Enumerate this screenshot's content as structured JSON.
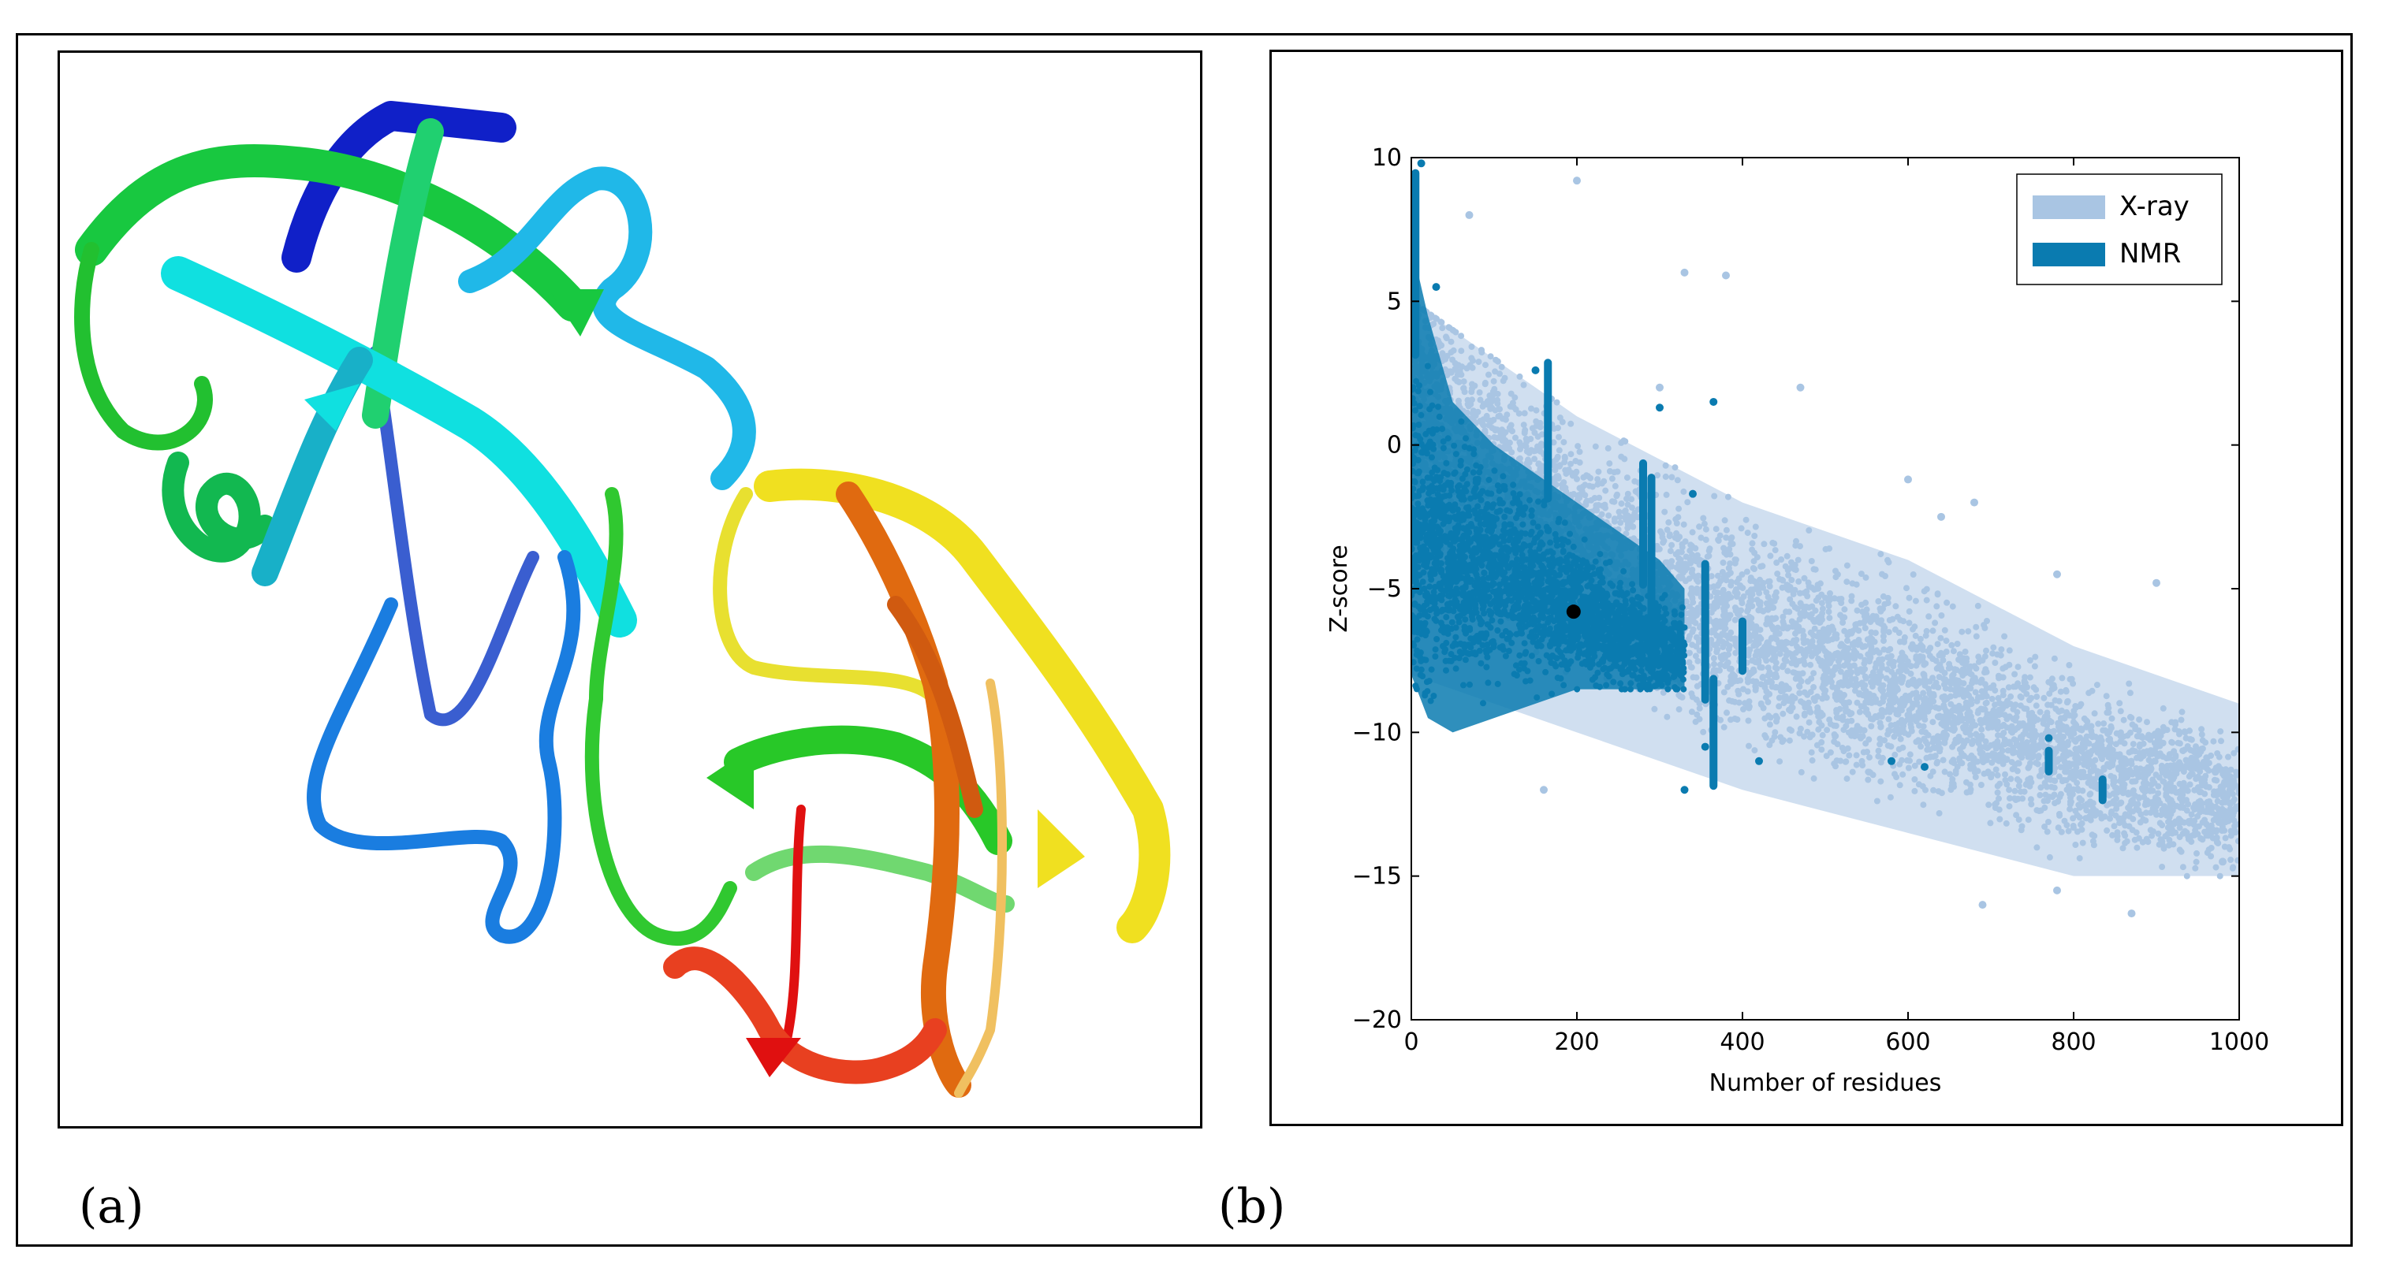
{
  "panels": {
    "a": {
      "label": "(a)"
    },
    "b": {
      "label": "(b)"
    }
  },
  "colors": {
    "xray": "#a9c5e3",
    "nmr": "#0a7bb0",
    "highlight": "#000000",
    "frame": "#000000"
  },
  "chart_data": {
    "type": "scatter",
    "title": "",
    "xlabel": "Number of residues",
    "ylabel": "Z-score",
    "xlim": [
      0,
      1000
    ],
    "ylim": [
      -20,
      10
    ],
    "xticks": [
      0,
      200,
      400,
      600,
      800,
      1000
    ],
    "yticks": [
      10,
      5,
      0,
      -5,
      -10,
      -15,
      -20
    ],
    "xtick_labels": [
      "0",
      "200",
      "400",
      "600",
      "800",
      "1000"
    ],
    "ytick_labels": [
      "10",
      "5",
      "0",
      "−5",
      "−10",
      "−15",
      "−20"
    ],
    "grid": false,
    "legend_position": "top-right",
    "series": [
      {
        "name": "X-ray",
        "color": "#a9c5e3",
        "trend": [
          [
            0,
            1.5
          ],
          [
            100,
            -1
          ],
          [
            200,
            -3.5
          ],
          [
            400,
            -6.5
          ],
          [
            600,
            -8.5
          ],
          [
            800,
            -11
          ],
          [
            1000,
            -12.5
          ]
        ],
        "band_upper": [
          [
            0,
            5
          ],
          [
            100,
            3
          ],
          [
            200,
            1
          ],
          [
            400,
            -2
          ],
          [
            600,
            -4
          ],
          [
            800,
            -7
          ],
          [
            1000,
            -9
          ]
        ],
        "band_lower": [
          [
            0,
            -8
          ],
          [
            100,
            -9
          ],
          [
            200,
            -10
          ],
          [
            400,
            -12
          ],
          [
            600,
            -13.5
          ],
          [
            800,
            -15
          ],
          [
            1000,
            -15
          ]
        ],
        "outliers": [
          [
            70,
            8
          ],
          [
            200,
            9.2
          ],
          [
            330,
            6
          ],
          [
            380,
            5.9
          ],
          [
            300,
            2
          ],
          [
            470,
            2
          ],
          [
            640,
            -2.5
          ],
          [
            680,
            -2
          ],
          [
            780,
            -4.5
          ],
          [
            900,
            -4.8
          ],
          [
            600,
            -1.2
          ],
          [
            780,
            -15.5
          ],
          [
            690,
            -16
          ],
          [
            870,
            -16.3
          ],
          [
            980,
            -14.5
          ],
          [
            160,
            -12
          ]
        ]
      },
      {
        "name": "NMR",
        "color": "#0a7bb0",
        "trend": [
          [
            0,
            -3
          ],
          [
            50,
            -4
          ],
          [
            100,
            -4.5
          ],
          [
            150,
            -5
          ],
          [
            200,
            -5.8
          ],
          [
            250,
            -6.5
          ],
          [
            300,
            -7
          ],
          [
            360,
            -7.5
          ]
        ],
        "band_upper": [
          [
            0,
            7
          ],
          [
            20,
            4.5
          ],
          [
            50,
            1.5
          ],
          [
            100,
            0
          ],
          [
            150,
            -1
          ],
          [
            200,
            -2
          ],
          [
            250,
            -3
          ],
          [
            300,
            -4
          ],
          [
            330,
            -5
          ]
        ],
        "band_lower": [
          [
            0,
            -8
          ],
          [
            20,
            -9.5
          ],
          [
            50,
            -10
          ],
          [
            100,
            -9.5
          ],
          [
            150,
            -9
          ],
          [
            200,
            -8.5
          ],
          [
            250,
            -8.5
          ],
          [
            300,
            -8.5
          ],
          [
            330,
            -8.5
          ]
        ],
        "column_streaks": [
          {
            "x": 5,
            "y_top": 9.6,
            "y_bottom": 3
          },
          {
            "x": 165,
            "y_top": 3,
            "y_bottom": -2
          },
          {
            "x": 280,
            "y_top": -0.5,
            "y_bottom": -5
          },
          {
            "x": 290,
            "y_top": -1,
            "y_bottom": -8
          },
          {
            "x": 355,
            "y_top": -4,
            "y_bottom": -9
          },
          {
            "x": 365,
            "y_top": -8,
            "y_bottom": -12
          },
          {
            "x": 400,
            "y_top": -6,
            "y_bottom": -8
          },
          {
            "x": 770,
            "y_top": -10.5,
            "y_bottom": -11.5
          },
          {
            "x": 835,
            "y_top": -11.5,
            "y_bottom": -12.5
          }
        ],
        "outliers": [
          [
            12,
            9.8
          ],
          [
            30,
            5.5
          ],
          [
            150,
            2.6
          ],
          [
            300,
            1.3
          ],
          [
            365,
            1.5
          ],
          [
            340,
            -1.7
          ],
          [
            420,
            -11
          ],
          [
            580,
            -11
          ],
          [
            620,
            -11.2
          ],
          [
            770,
            -10.2
          ],
          [
            355,
            -10.5
          ],
          [
            330,
            -12
          ]
        ]
      },
      {
        "name": "",
        "color": "#000000",
        "points": [
          [
            196,
            -5.8
          ]
        ]
      }
    ]
  }
}
